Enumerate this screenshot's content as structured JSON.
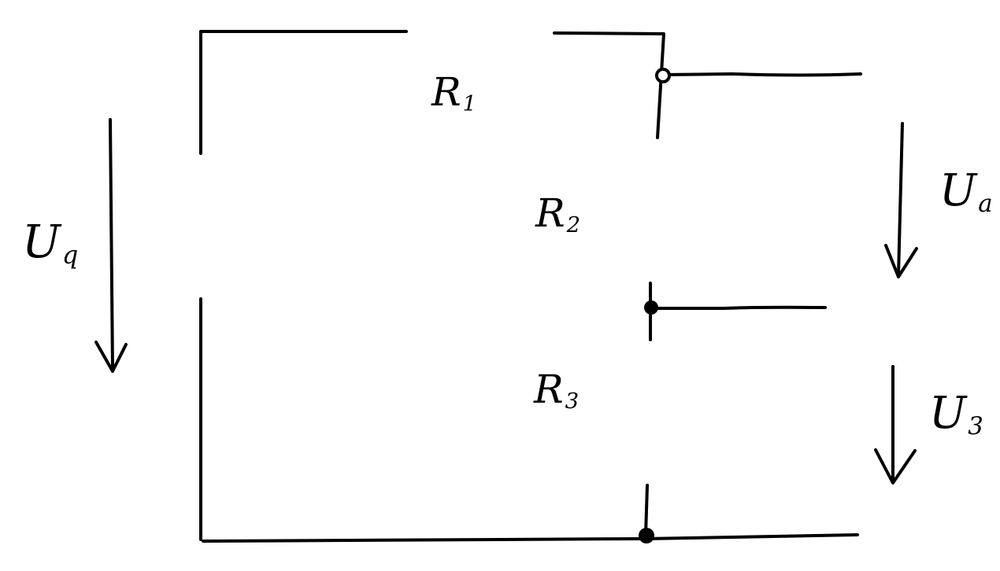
{
  "diagram": {
    "type": "electrical circuit (voltage divider)",
    "stroke_color": "#000000",
    "background": "#ffffff",
    "labels": {
      "source_voltage": {
        "main": "U",
        "sub": "q"
      },
      "r1": {
        "main": "R",
        "sub": "1"
      },
      "r2": {
        "main": "R",
        "sub": "2"
      },
      "r3": {
        "main": "R",
        "sub": "3"
      },
      "output_voltage": {
        "main": "U",
        "sub": "a"
      },
      "u3_voltage": {
        "main": "U",
        "sub": "3"
      }
    }
  }
}
